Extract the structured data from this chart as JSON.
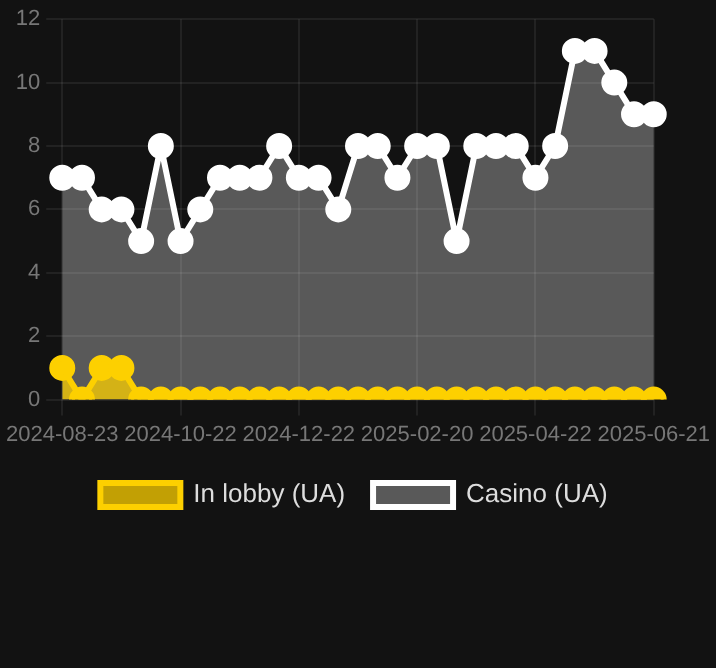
{
  "chart_data": {
    "type": "area",
    "categories": [
      "2024-08-23",
      null,
      null,
      null,
      null,
      null,
      "2024-10-22",
      null,
      null,
      null,
      null,
      null,
      "2024-12-22",
      null,
      null,
      null,
      null,
      null,
      "2025-02-20",
      null,
      null,
      null,
      null,
      null,
      "2025-04-22",
      null,
      null,
      null,
      null,
      null,
      "2025-06-21"
    ],
    "series": [
      {
        "name": "In lobby (UA)",
        "color": "#fdd000",
        "values": [
          1,
          0,
          1,
          1,
          0,
          0,
          0,
          0,
          0,
          0,
          0,
          0,
          0,
          0,
          0,
          0,
          0,
          0,
          0,
          0,
          0,
          0,
          0,
          0,
          0,
          0,
          0,
          0,
          0,
          0,
          0
        ]
      },
      {
        "name": "Casino (UA)",
        "color": "#ffffff",
        "values": [
          7,
          7,
          6,
          6,
          5,
          8,
          5,
          6,
          7,
          7,
          7,
          8,
          7,
          7,
          6,
          8,
          8,
          7,
          8,
          8,
          5,
          8,
          8,
          8,
          7,
          8,
          11,
          11,
          10,
          9,
          9
        ]
      }
    ],
    "ylim": [
      0,
      12
    ],
    "yticks": [
      0,
      2,
      4,
      6,
      8,
      10,
      12
    ],
    "grid": true,
    "legend": "bottom",
    "marker": "circle",
    "line_style": "solid"
  }
}
